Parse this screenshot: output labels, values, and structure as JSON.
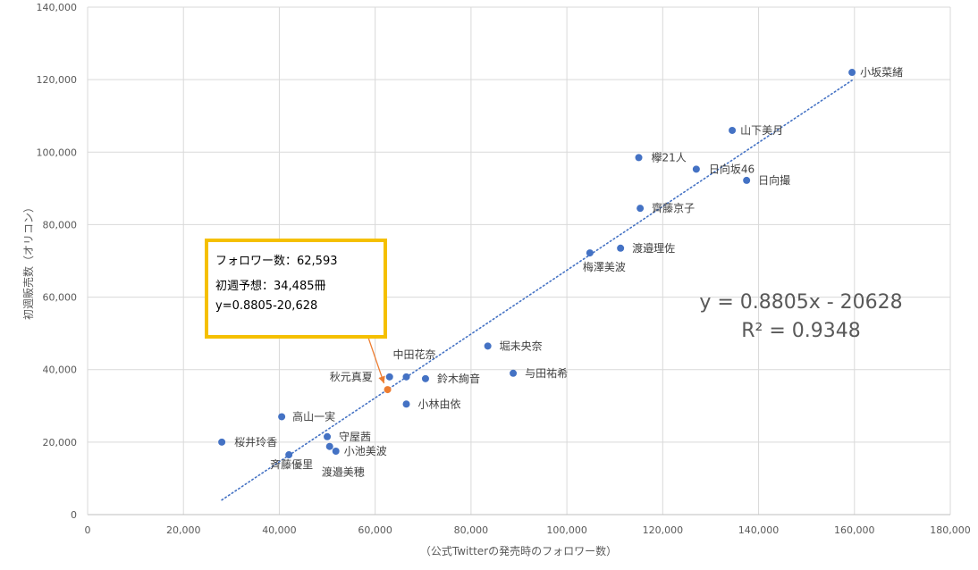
{
  "chart_data": {
    "type": "scatter",
    "xlabel": "（公式Twitterの発売時のフォロワー数）",
    "ylabel": "初週販売数（オリコン）",
    "xlim": [
      0,
      180000
    ],
    "ylim": [
      0,
      140000
    ],
    "x_ticks": [
      "0",
      "20,000",
      "40,000",
      "60,000",
      "80,000",
      "100,000",
      "120,000",
      "140,000",
      "160,000",
      "180,000"
    ],
    "y_ticks": [
      "0",
      "20,000",
      "40,000",
      "60,000",
      "80,000",
      "100,000",
      "120,000",
      "140,000"
    ],
    "grid": true,
    "points": [
      {
        "label": "小坂菜緒",
        "x": 159500,
        "y": 122000
      },
      {
        "label": "山下美月",
        "x": 134500,
        "y": 106000
      },
      {
        "label": "欅21人",
        "x": 115000,
        "y": 98500
      },
      {
        "label": "日向坂46",
        "x": 127000,
        "y": 95300
      },
      {
        "label": "日向撮",
        "x": 137500,
        "y": 92200
      },
      {
        "label": "齊藤京子",
        "x": 115300,
        "y": 84500
      },
      {
        "label": "渡邉理佐",
        "x": 111200,
        "y": 73500
      },
      {
        "label": "梅澤美波",
        "x": 104800,
        "y": 72200
      },
      {
        "label": "堀未央奈",
        "x": 83500,
        "y": 46500
      },
      {
        "label": "中田花奈",
        "x": 66500,
        "y": 38000
      },
      {
        "label": "秋元真夏",
        "x": 63000,
        "y": 38000
      },
      {
        "label": "鈴木絢音",
        "x": 70500,
        "y": 37500
      },
      {
        "label": "与田祐希",
        "x": 88800,
        "y": 39000
      },
      {
        "label": "小林由依",
        "x": 66500,
        "y": 30500
      },
      {
        "label": "高山一実",
        "x": 40500,
        "y": 27000
      },
      {
        "label": "桜井玲香",
        "x": 28000,
        "y": 20000
      },
      {
        "label": "守屋茜",
        "x": 50000,
        "y": 21500
      },
      {
        "label": "小池美波",
        "x": 51800,
        "y": 17500
      },
      {
        "label": "渡邉美穂",
        "x": 50500,
        "y": 18800
      },
      {
        "label": "斉藤優里",
        "x": 42000,
        "y": 16500
      }
    ],
    "highlight_point": {
      "x": 62593,
      "y": 34485,
      "color": "#ed7d31"
    },
    "point_color": "#4472c4",
    "trendline": {
      "slope": 0.8805,
      "intercept": -20628,
      "x_range": [
        28000,
        159500
      ],
      "color": "#4472c4",
      "style": "dotted"
    },
    "equation": "y = 0.8805x - 20628",
    "r_squared": "R² = 0.9348"
  },
  "callout": {
    "line1": "フォロワー数：62,593",
    "line2": "初週予想：34,485冊",
    "line3": "y=0.8805-20,628",
    "border_color": "#f5c000",
    "arrow_color": "#ed7d31"
  }
}
